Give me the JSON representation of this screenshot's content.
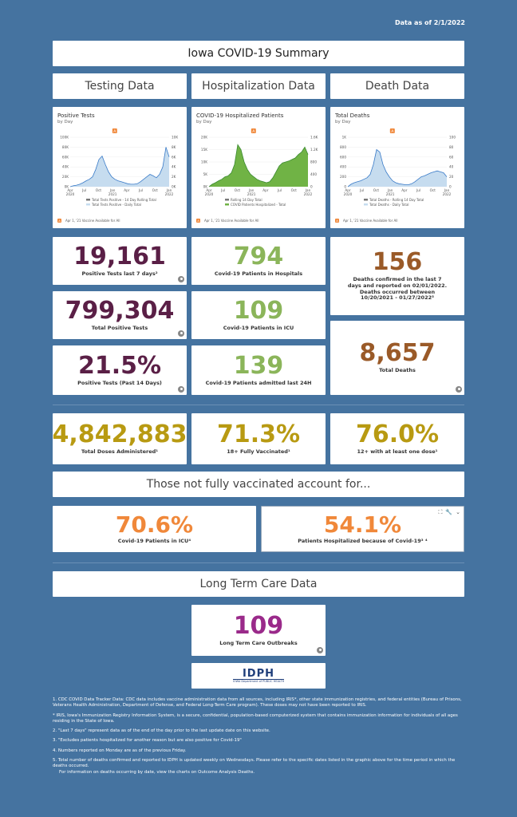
{
  "data_as_of": "Data as of 2/1/2022",
  "page_title": "Iowa COVID-19 Summary",
  "sections": {
    "testing": "Testing Data",
    "hospitalization": "Hospitalization Data",
    "death": "Death Data"
  },
  "charts": {
    "positive": {
      "title": "Positive Tests",
      "subtitle": "by Day",
      "marker": "A",
      "y_ticks": [
        "100K",
        "80K",
        "60K",
        "40K",
        "20K",
        "0K"
      ],
      "y2_ticks": [
        "10K",
        "8K",
        "6K",
        "4K",
        "2K",
        "0K"
      ],
      "x_ticks": [
        "Apr\n2020",
        "Jul",
        "Oct",
        "Jan\n2021",
        "Apr",
        "Jul",
        "Oct",
        "Jan\n2022"
      ],
      "legend": [
        "Total Tests Positive - 14 Day Rolling Total",
        "Total Tests Positive - Daily Total"
      ],
      "footnote": "Apr 1, '21 Vaccine Available for All"
    },
    "hospitalized": {
      "title": "COVID-19 Hospitalized Patients",
      "subtitle": "by Day",
      "marker": "A",
      "y_ticks": [
        "20K",
        "15K",
        "10K",
        "5K",
        "0K"
      ],
      "y2_ticks": [
        "1.6K",
        "1.2K",
        "800",
        "400",
        "0"
      ],
      "x_ticks": [
        "Apr\n2020",
        "Jul",
        "Oct",
        "Jan\n2021",
        "Apr",
        "Jul",
        "Oct",
        "Jan\n2022"
      ],
      "legend": [
        "Rolling 14 Day Total",
        "COVID Patients Hospitalized - Total"
      ],
      "footnote": "Apr 1, '21 Vaccine Available for All"
    },
    "deaths": {
      "title": "Total Deaths",
      "subtitle": "by Day",
      "marker": "A",
      "y_ticks": [
        "1K",
        "800",
        "600",
        "400",
        "200",
        "0"
      ],
      "y2_ticks": [
        "100",
        "80",
        "60",
        "40",
        "20",
        "0"
      ],
      "x_ticks": [
        "Apr\n2020",
        "Jul",
        "Oct",
        "Jan\n2021",
        "Apr",
        "Jul",
        "Oct",
        "Jan\n2022"
      ],
      "legend": [
        "Total Deaths - Rolling 14 Day Total",
        "Total Deaths - Daily Total"
      ],
      "footnote": "Apr 1, '21 Vaccine Available for All"
    }
  },
  "kpis": {
    "pos7": {
      "value": "19,161",
      "label": "Positive Tests last 7 days²"
    },
    "totalpos": {
      "value": "799,304",
      "label": "Total Positive Tests"
    },
    "posrate": {
      "value": "21.5%",
      "label": "Positive Tests (Past 14 Days)"
    },
    "hosp": {
      "value": "794",
      "label": "Covid-19 Patients in Hospitals"
    },
    "icu": {
      "value": "109",
      "label": "Covid-19 Patients in ICU"
    },
    "admit": {
      "value": "139",
      "label": "Covid-19 Patients admitted last 24H"
    },
    "deaths7": {
      "value": "156",
      "label": "Deaths confirmed in the last 7 days and reported on 02/01/2022. Deaths occurred between 10/20/2021 - 01/27/2022⁵"
    },
    "totaldeaths": {
      "value": "8,657",
      "label": "Total Deaths"
    },
    "doses": {
      "value": "4,842,883",
      "label": "Total Doses Administered¹"
    },
    "fully": {
      "value": "71.3%",
      "label": "18+ Fully Vaccinated¹"
    },
    "onedose": {
      "value": "76.0%",
      "label": "12+ with at least one dose¹"
    },
    "notvax_icu": {
      "value": "70.6%",
      "label": "Covid-19 Patients in ICU⁴"
    },
    "notvax_hosp": {
      "value": "54.1%",
      "label": "Patients Hospitalized because of Covid-19³ ⁴"
    },
    "ltc": {
      "value": "109",
      "label": "Long Term Care Outbreaks"
    }
  },
  "not_vaccinated_header": "Those not fully vaccinated account for...",
  "ltc_header": "Long Term Care Data",
  "logo": {
    "text": "IDPH",
    "sub": "IOWA Department of PUBLIC HEALTH"
  },
  "colors": {
    "background": "#4573a0",
    "maroon": "#5a1f46",
    "green": "#8bb55a",
    "brown": "#9a5a28",
    "gold": "#b89a12",
    "orange": "#f0883a",
    "purple": "#9a2a8a",
    "chart_blue": "#a9cbe8",
    "chart_green": "#70b345"
  },
  "notes": [
    "1. CDC COVID Data Tracker Data: CDC data includes vaccine administration data from all sources, including IRIS*, other state immunization registries, and federal entities (Bureau of Prisons, Veterans Health Administration, Department of Defense, and Federal Long-Term Care program). These doses may not have been reported to IRIS.",
    "* IRIS, Iowa's Immunization Registry Information System, is a secure, confidential, population-based computerized system that contains immunization information for individuals of all ages residing in the State of Iowa.",
    "2. \"Last 7 days\" represent data as of the end of the day prior to the last update date on this website.",
    "3. \"Excludes patients hospitalized for another reason but are also positive for Covid-19\"",
    "4. Numbers reported on Monday are as of the previous Friday.",
    "5. Total number of deaths confirmed and reported to IDPH is updated weekly on Wednesdays.  Please refer to the specific dates listed in the graphic above for the time period in which the deaths occurred.",
    "For information on deaths occurring by date, view the charts on Outcome Analysis Deaths."
  ]
}
